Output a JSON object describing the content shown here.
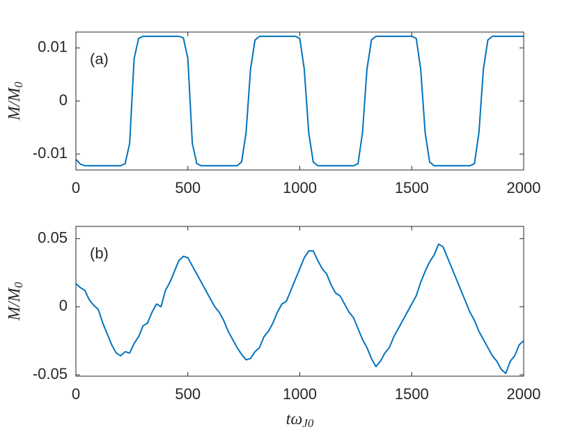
{
  "chart_data": [
    {
      "type": "line",
      "annotation": "(a)",
      "ylabel": "M/M",
      "ylabel_sub": "0",
      "color": "#0072bd",
      "x": [
        0,
        20,
        40,
        60,
        80,
        100,
        120,
        140,
        160,
        180,
        200,
        220,
        240,
        260,
        280,
        300,
        320,
        340,
        360,
        380,
        400,
        420,
        440,
        460,
        480,
        500,
        520,
        540,
        560,
        580,
        600,
        620,
        640,
        660,
        680,
        700,
        720,
        740,
        760,
        780,
        800,
        820,
        840,
        860,
        880,
        900,
        920,
        940,
        960,
        980,
        1000,
        1020,
        1040,
        1060,
        1080,
        1100,
        1120,
        1140,
        1160,
        1180,
        1200,
        1220,
        1240,
        1260,
        1280,
        1300,
        1320,
        1340,
        1360,
        1380,
        1400,
        1420,
        1440,
        1460,
        1480,
        1500,
        1520,
        1540,
        1560,
        1580,
        1600,
        1620,
        1640,
        1660,
        1680,
        1700,
        1720,
        1740,
        1760,
        1780,
        1800,
        1820,
        1840,
        1860,
        1880,
        1900,
        1920,
        1940,
        1960,
        1980,
        2000
      ],
      "values": [
        -0.011,
        -0.0119,
        -0.0122,
        -0.0122,
        -0.0122,
        -0.0122,
        -0.0122,
        -0.0122,
        -0.0122,
        -0.0122,
        -0.0122,
        -0.0118,
        -0.008,
        0.008,
        0.0118,
        0.0122,
        0.0122,
        0.0122,
        0.0122,
        0.0122,
        0.0122,
        0.0122,
        0.0122,
        0.0122,
        0.0119,
        0.008,
        -0.008,
        -0.0118,
        -0.0122,
        -0.0122,
        -0.0122,
        -0.0122,
        -0.0122,
        -0.0122,
        -0.0122,
        -0.0122,
        -0.0122,
        -0.0115,
        -0.006,
        0.006,
        0.0115,
        0.0122,
        0.0122,
        0.0122,
        0.0122,
        0.0122,
        0.0122,
        0.0122,
        0.0122,
        0.0122,
        0.0118,
        0.006,
        -0.006,
        -0.0115,
        -0.0122,
        -0.0122,
        -0.0122,
        -0.0122,
        -0.0122,
        -0.0122,
        -0.0122,
        -0.0122,
        -0.0122,
        -0.0118,
        -0.006,
        0.006,
        0.0115,
        0.0122,
        0.0122,
        0.0122,
        0.0122,
        0.0122,
        0.0122,
        0.0122,
        0.0122,
        0.0122,
        0.0118,
        0.006,
        -0.006,
        -0.0115,
        -0.0122,
        -0.0122,
        -0.0122,
        -0.0122,
        -0.0122,
        -0.0122,
        -0.0122,
        -0.0122,
        -0.0122,
        -0.0118,
        -0.006,
        0.006,
        0.0115,
        0.0122,
        0.0122,
        0.0122,
        0.0122,
        0.0122,
        0.0122,
        0.0122,
        0.0122
      ],
      "xlim": [
        0,
        2000
      ],
      "xticks": [
        0,
        500,
        1000,
        1500,
        2000
      ],
      "ylim": [
        -0.013,
        0.013
      ],
      "yticks": [
        -0.01,
        0,
        0.01
      ]
    },
    {
      "type": "line",
      "annotation": "(b)",
      "ylabel": "M/M",
      "ylabel_sub": "0",
      "xlabel": "tω",
      "xlabel_sub": "J0",
      "color": "#0072bd",
      "x": [
        0,
        20,
        40,
        60,
        80,
        100,
        120,
        140,
        160,
        180,
        200,
        220,
        240,
        260,
        280,
        300,
        320,
        340,
        360,
        380,
        400,
        420,
        440,
        460,
        480,
        500,
        520,
        540,
        560,
        580,
        600,
        620,
        640,
        660,
        680,
        700,
        720,
        740,
        760,
        780,
        800,
        820,
        840,
        860,
        880,
        900,
        920,
        940,
        960,
        980,
        1000,
        1020,
        1040,
        1060,
        1080,
        1100,
        1120,
        1140,
        1160,
        1180,
        1200,
        1220,
        1240,
        1260,
        1280,
        1300,
        1320,
        1340,
        1360,
        1380,
        1400,
        1420,
        1440,
        1460,
        1480,
        1500,
        1520,
        1540,
        1560,
        1580,
        1600,
        1620,
        1640,
        1660,
        1680,
        1700,
        1720,
        1740,
        1760,
        1780,
        1800,
        1820,
        1840,
        1860,
        1880,
        1900,
        1920,
        1940,
        1960,
        1980,
        2000
      ],
      "values": [
        0.017,
        0.014,
        0.012,
        0.005,
        0.001,
        -0.002,
        -0.012,
        -0.02,
        -0.028,
        -0.034,
        -0.036,
        -0.033,
        -0.034,
        -0.027,
        -0.022,
        -0.014,
        -0.012,
        -0.004,
        0.002,
        0.0,
        0.012,
        0.018,
        0.026,
        0.034,
        0.037,
        0.036,
        0.03,
        0.024,
        0.018,
        0.012,
        0.006,
        0.0,
        -0.004,
        -0.01,
        -0.018,
        -0.024,
        -0.03,
        -0.035,
        -0.039,
        -0.038,
        -0.033,
        -0.03,
        -0.022,
        -0.018,
        -0.012,
        -0.004,
        0.002,
        0.004,
        0.012,
        0.02,
        0.028,
        0.036,
        0.041,
        0.041,
        0.034,
        0.028,
        0.024,
        0.016,
        0.01,
        0.008,
        0.002,
        -0.004,
        -0.008,
        -0.016,
        -0.024,
        -0.03,
        -0.038,
        -0.044,
        -0.04,
        -0.034,
        -0.03,
        -0.022,
        -0.016,
        -0.01,
        -0.004,
        0.002,
        0.008,
        0.018,
        0.026,
        0.033,
        0.038,
        0.046,
        0.044,
        0.036,
        0.028,
        0.02,
        0.012,
        0.004,
        -0.004,
        -0.01,
        -0.018,
        -0.024,
        -0.03,
        -0.036,
        -0.04,
        -0.046,
        -0.049,
        -0.04,
        -0.036,
        -0.028,
        -0.025
      ],
      "xlim": [
        0,
        2000
      ],
      "xticks": [
        0,
        500,
        1000,
        1500,
        2000
      ],
      "ylim": [
        -0.051,
        0.059
      ],
      "yticks": [
        -0.05,
        0,
        0.05
      ]
    }
  ]
}
